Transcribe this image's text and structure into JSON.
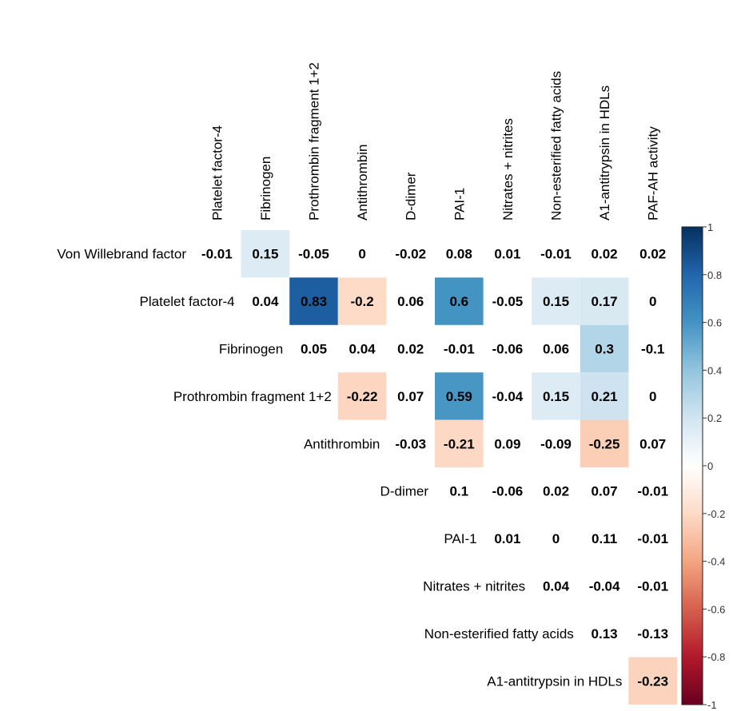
{
  "chart_data": {
    "type": "heatmap",
    "subtype": "correlation-upper-triangle",
    "row_labels": [
      "Von Willebrand factor",
      "Platelet factor-4",
      "Fibrinogen",
      "Prothrombin fragment 1+2",
      "Antithrombin",
      "D-dimer",
      "PAI-1",
      "Nitrates + nitrites",
      "Non-esterified fatty acids",
      "A1-antitrypsin in HDLs"
    ],
    "column_labels": [
      "Platelet factor-4",
      "Fibrinogen",
      "Prothrombin fragment 1+2",
      "Antithrombin",
      "D-dimer",
      "PAI-1",
      "Nitrates + nitrites",
      "Non-esterified fatty acids",
      "A1-antitrypsin in HDLs",
      "PAF-AH activity"
    ],
    "values": [
      [
        -0.01,
        0.15,
        -0.05,
        0,
        -0.02,
        0.08,
        0.01,
        -0.01,
        0.02,
        0.02
      ],
      [
        null,
        0.04,
        0.83,
        -0.2,
        0.06,
        0.6,
        -0.05,
        0.15,
        0.17,
        0
      ],
      [
        null,
        null,
        0.05,
        0.04,
        0.02,
        -0.01,
        -0.06,
        0.06,
        0.3,
        -0.1
      ],
      [
        null,
        null,
        null,
        -0.22,
        0.07,
        0.59,
        -0.04,
        0.15,
        0.21,
        0
      ],
      [
        null,
        null,
        null,
        null,
        -0.03,
        -0.21,
        0.09,
        -0.09,
        -0.25,
        0.07
      ],
      [
        null,
        null,
        null,
        null,
        null,
        0.1,
        -0.06,
        0.02,
        0.07,
        -0.01
      ],
      [
        null,
        null,
        null,
        null,
        null,
        null,
        0.01,
        0,
        0.11,
        -0.01
      ],
      [
        null,
        null,
        null,
        null,
        null,
        null,
        null,
        0.04,
        -0.04,
        -0.01
      ],
      [
        null,
        null,
        null,
        null,
        null,
        null,
        null,
        null,
        0.13,
        -0.13
      ],
      [
        null,
        null,
        null,
        null,
        null,
        null,
        null,
        null,
        null,
        -0.23
      ]
    ],
    "shaded_threshold": 0.15,
    "colorbar": {
      "range": [
        -1,
        1
      ],
      "ticks": [
        1,
        0.8,
        0.6,
        0.4,
        0.2,
        0,
        -0.2,
        -0.4,
        -0.6,
        -0.8,
        -1
      ],
      "tick_labels": [
        "1",
        "0.8",
        "0.6",
        "0.4",
        "0.2",
        "0",
        "-0.2",
        "-0.4",
        "-0.6",
        "-0.8",
        "-1"
      ],
      "colors": {
        "neg1": "#67001f",
        "neg08": "#b2182b",
        "neg06": "#d6604d",
        "neg04": "#f4a582",
        "neg02": "#fddbc7",
        "zero": "#ffffff",
        "pos02": "#d1e5f0",
        "pos04": "#92c5de",
        "pos06": "#4393c3",
        "pos08": "#2166ac",
        "pos1": "#053061"
      }
    },
    "legend_position": "right"
  }
}
